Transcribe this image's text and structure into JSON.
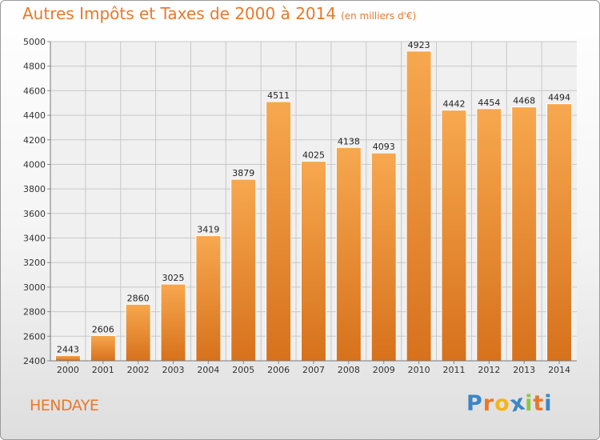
{
  "title": "Autres Impôts et Taxes de 2000 à 2014",
  "unit_label": "(en milliers d'€)",
  "place": "HENDAYE",
  "brand": {
    "letters": [
      "P",
      "r",
      "o",
      "x",
      "i",
      "t",
      "i"
    ],
    "colors": [
      "#3a86c8",
      "#e8792a",
      "#f2b51c",
      "#3a86c8",
      "#8dc63f",
      "#e8792a",
      "#3a86c8"
    ]
  },
  "colors": {
    "bar_light": "#f7a84f",
    "bar_dark": "#d7711c",
    "accent": "#e8792a",
    "grid": "#c8c8c8",
    "plot_bg": "#f0f0f0"
  },
  "chart_data": {
    "type": "bar",
    "categories": [
      "2000",
      "2001",
      "2002",
      "2003",
      "2004",
      "2005",
      "2006",
      "2007",
      "2008",
      "2009",
      "2010",
      "2011",
      "2012",
      "2013",
      "2014"
    ],
    "values": [
      2443,
      2606,
      2860,
      3025,
      3419,
      3879,
      4511,
      4025,
      4138,
      4093,
      4923,
      4442,
      4454,
      4468,
      4494
    ],
    "title": "Autres Impôts et Taxes de 2000 à 2014",
    "xlabel": "",
    "ylabel": "",
    "ylim": [
      2400,
      5000
    ],
    "yticks": [
      2400,
      2600,
      2800,
      3000,
      3200,
      3400,
      3600,
      3800,
      4000,
      4200,
      4400,
      4600,
      4800,
      5000
    ],
    "grid": true,
    "legend": "none"
  }
}
